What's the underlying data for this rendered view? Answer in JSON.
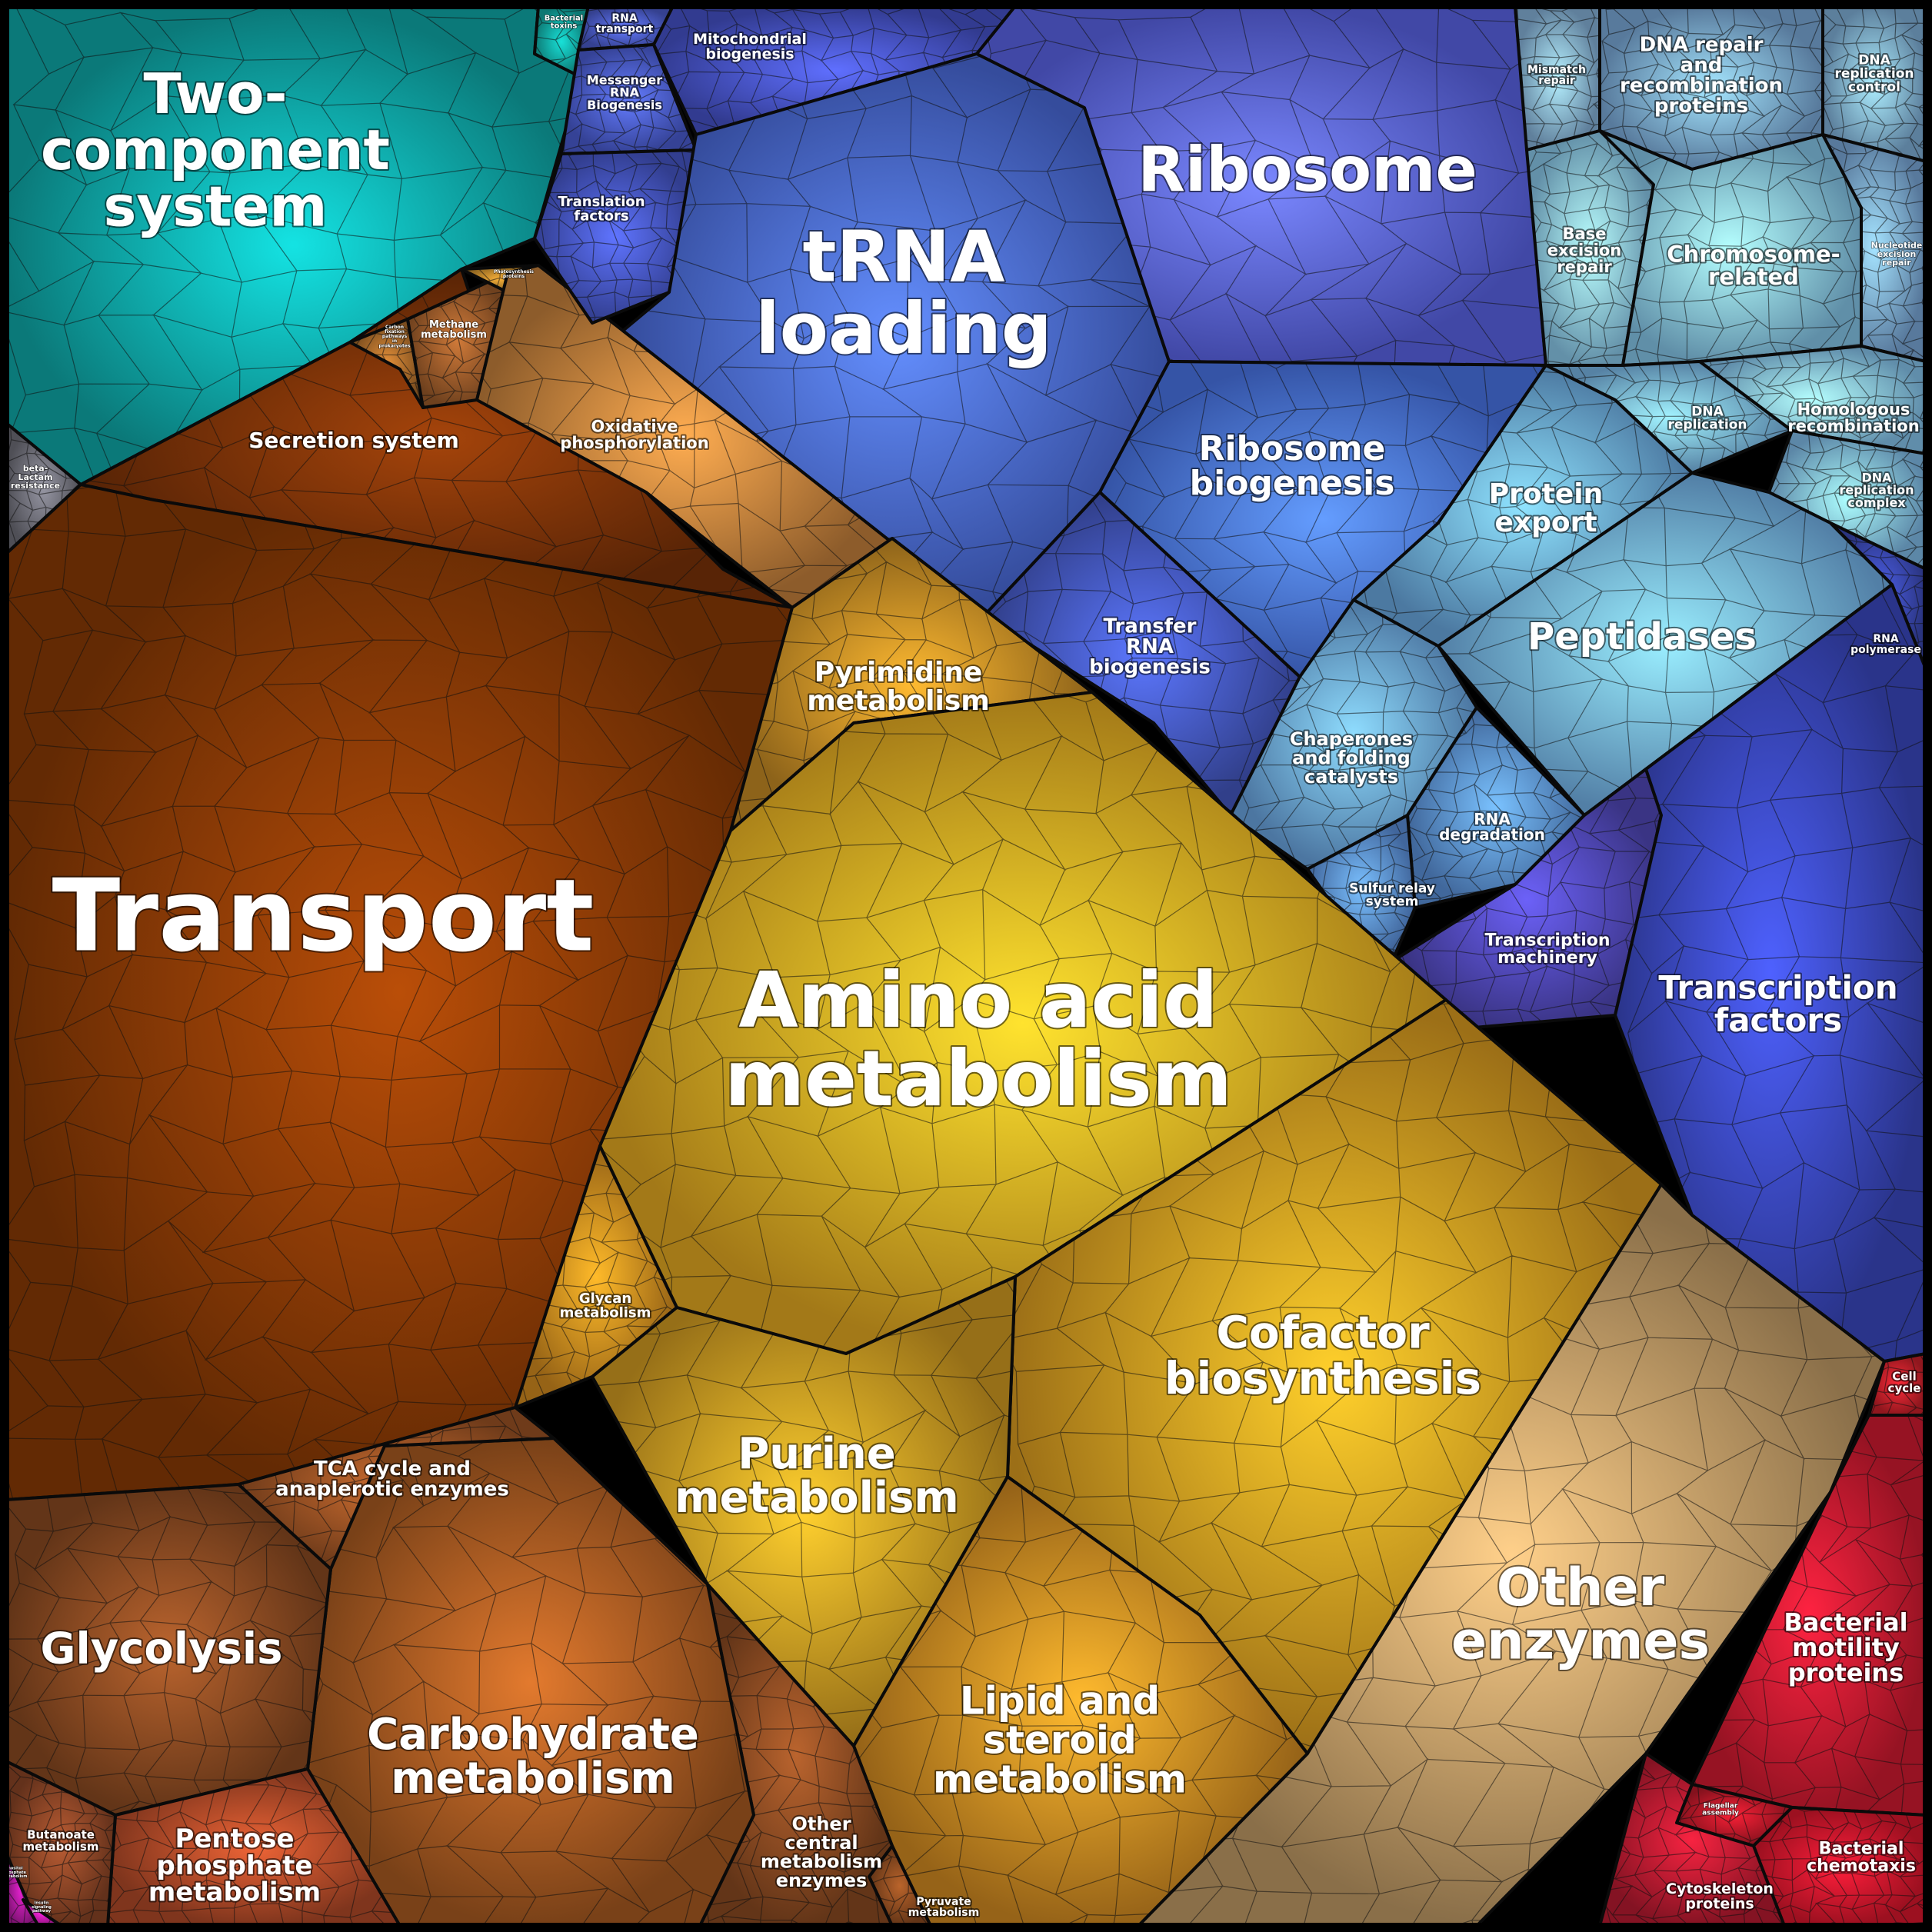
{
  "regions": [
    {
      "id": "two-component",
      "label": "Two-\ncomponent\nsystem",
      "color": "#0fa8a8"
    },
    {
      "id": "bacterial-toxins",
      "label": "Bacterial\ntoxins",
      "color": "#12a7a0"
    },
    {
      "id": "beta-lactam",
      "label": "beta-\nLactam\nresistance",
      "color": "#6e6e78"
    },
    {
      "id": "secretion",
      "label": "Secretion system",
      "color": "#7a3208"
    },
    {
      "id": "carbon-fixation",
      "label": "Carbon\nfixation\npathways\nin\nprokaryotes",
      "color": "#a86a2a"
    },
    {
      "id": "methane",
      "label": "Methane\nmetabolism",
      "color": "#9a5a2a"
    },
    {
      "id": "photosynthesis",
      "label": "Photosynthesis\nproteins",
      "color": "#b8822a"
    },
    {
      "id": "oxphos",
      "label": "Oxidative\nphosphorylation",
      "color": "#c4803c"
    },
    {
      "id": "transport",
      "label": "Transport",
      "color": "#8a3a06"
    },
    {
      "id": "rna-transport",
      "label": "RNA\ntransport",
      "color": "#4a5ac8"
    },
    {
      "id": "mrna-biogenesis",
      "label": "Messenger\nRNA\nBiogenesis",
      "color": "#4a5cd0"
    },
    {
      "id": "mito-biogenesis",
      "label": "Mitochondrial\nbiogenesis",
      "color": "#4652c8"
    },
    {
      "id": "translation-factors",
      "label": "Translation\nfactors",
      "color": "#4656c6"
    },
    {
      "id": "trna-loading",
      "label": "tRNA\nloading",
      "color": "#4a6ad8"
    },
    {
      "id": "ribosome",
      "label": "Ribosome",
      "color": "#5a64e6"
    },
    {
      "id": "ribosome-biogenesis",
      "label": "Ribosome\nbiogenesis",
      "color": "#4a74e6"
    },
    {
      "id": "transfer-rna-biogenesis",
      "label": "Transfer\nRNA\nbiogenesis",
      "color": "#4458c0"
    },
    {
      "id": "mismatch-repair",
      "label": "Mismatch\nrepair",
      "color": "#86b2d8"
    },
    {
      "id": "dna-repair",
      "label": "DNA repair\nand\nrecombination\nproteins",
      "color": "#7aaad8"
    },
    {
      "id": "dna-replication-control",
      "label": "DNA\nreplication\ncontrol",
      "color": "#80b0d8"
    },
    {
      "id": "base-excision",
      "label": "Base\nexcision\nrepair",
      "color": "#8ac8ea"
    },
    {
      "id": "chromosome",
      "label": "Chromosome-\nrelated",
      "color": "#86c6ea"
    },
    {
      "id": "nucleotide-excision",
      "label": "Nucleotide\nexcision\nrepair",
      "color": "#7aa8d8"
    },
    {
      "id": "dna-replication",
      "label": "DNA\nreplication",
      "color": "#78b4e4"
    },
    {
      "id": "homologous-recombination",
      "label": "Homologous\nrecombination",
      "color": "#86c4ec"
    },
    {
      "id": "dna-replication-complex",
      "label": "DNA\nreplication\ncomplex",
      "color": "#80bce8"
    },
    {
      "id": "protein-export",
      "label": "Protein\nexport",
      "color": "#6aa8e0"
    },
    {
      "id": "peptidases",
      "label": "Peptidases",
      "color": "#72b0e6"
    },
    {
      "id": "rna-polymerase",
      "label": "RNA\npolymerase",
      "color": "#3a48b0"
    },
    {
      "id": "chaperones",
      "label": "Chaperones\nand folding\ncatalysts",
      "color": "#6aa4e0"
    },
    {
      "id": "rna-degradation",
      "label": "RNA\ndegradation",
      "color": "#5a90d8"
    },
    {
      "id": "sulfur-relay",
      "label": "Sulfur relay\nsystem",
      "color": "#5a8ed8"
    },
    {
      "id": "transcription-machinery",
      "label": "Transcription\nmachinery",
      "color": "#5048b8"
    },
    {
      "id": "transcription-factors",
      "label": "Transcription\nfactors",
      "color": "#3a48c0"
    },
    {
      "id": "pyrimidine",
      "label": "Pyrimidine\nmetabolism",
      "color": "#c48a24"
    },
    {
      "id": "amino-acid",
      "label": "Amino acid\nmetabolism",
      "color": "#e2a822"
    },
    {
      "id": "glycan",
      "label": "Glycan\nmetabolism",
      "color": "#d08a1e"
    },
    {
      "id": "cofactor",
      "label": "Cofactor\nbiosynthesis",
      "color": "#d89a20"
    },
    {
      "id": "purine",
      "label": "Purine\nmetabolism",
      "color": "#d09a22"
    },
    {
      "id": "other-enzymes",
      "label": "Other\nenzymes",
      "color": "#c09a66"
    },
    {
      "id": "cell-cycle",
      "label": "Cell\ncycle",
      "color": "#c8202a"
    },
    {
      "id": "bacterial-motility",
      "label": "Bacterial\nmotility\nproteins",
      "color": "#d01a30"
    },
    {
      "id": "flagellar-assembly",
      "label": "Flagellar\nassembly",
      "color": "#b81828"
    },
    {
      "id": "bacterial-chemotaxis",
      "label": "Bacterial\nchemotaxis",
      "color": "#d8162c"
    },
    {
      "id": "cytoskeleton",
      "label": "Cytoskeleton\nproteins",
      "color": "#b81a30"
    },
    {
      "id": "lipid-steroid",
      "label": "Lipid and\nsteroid\nmetabolism",
      "color": "#d08a22"
    },
    {
      "id": "pyruvate",
      "label": "Pyruvate\nmetabolism",
      "color": "#8a4a20"
    },
    {
      "id": "other-central",
      "label": "Other\ncentral\nmetabolism\nenzymes",
      "color": "#8a4a22"
    },
    {
      "id": "carbohydrate",
      "label": "Carbohydrate\nmetabolism",
      "color": "#a85a22"
    },
    {
      "id": "tca",
      "label": "TCA cycle and\nanaplerotic enzymes",
      "color": "#9a5224"
    },
    {
      "id": "glycolysis",
      "label": "Glycolysis",
      "color": "#8a4a22"
    },
    {
      "id": "pentose",
      "label": "Pentose\nphosphate\nmetabolism",
      "color": "#b04a28"
    },
    {
      "id": "butanoate",
      "label": "Butanoate\nmetabolism",
      "color": "#8a4426"
    },
    {
      "id": "inositol",
      "label": "Inositol\nphosphate\nmetabolism",
      "color": "#b01aa0"
    },
    {
      "id": "insulin",
      "label": "Insulin\nsignaling\npathway",
      "color": "#c01aa8"
    }
  ]
}
